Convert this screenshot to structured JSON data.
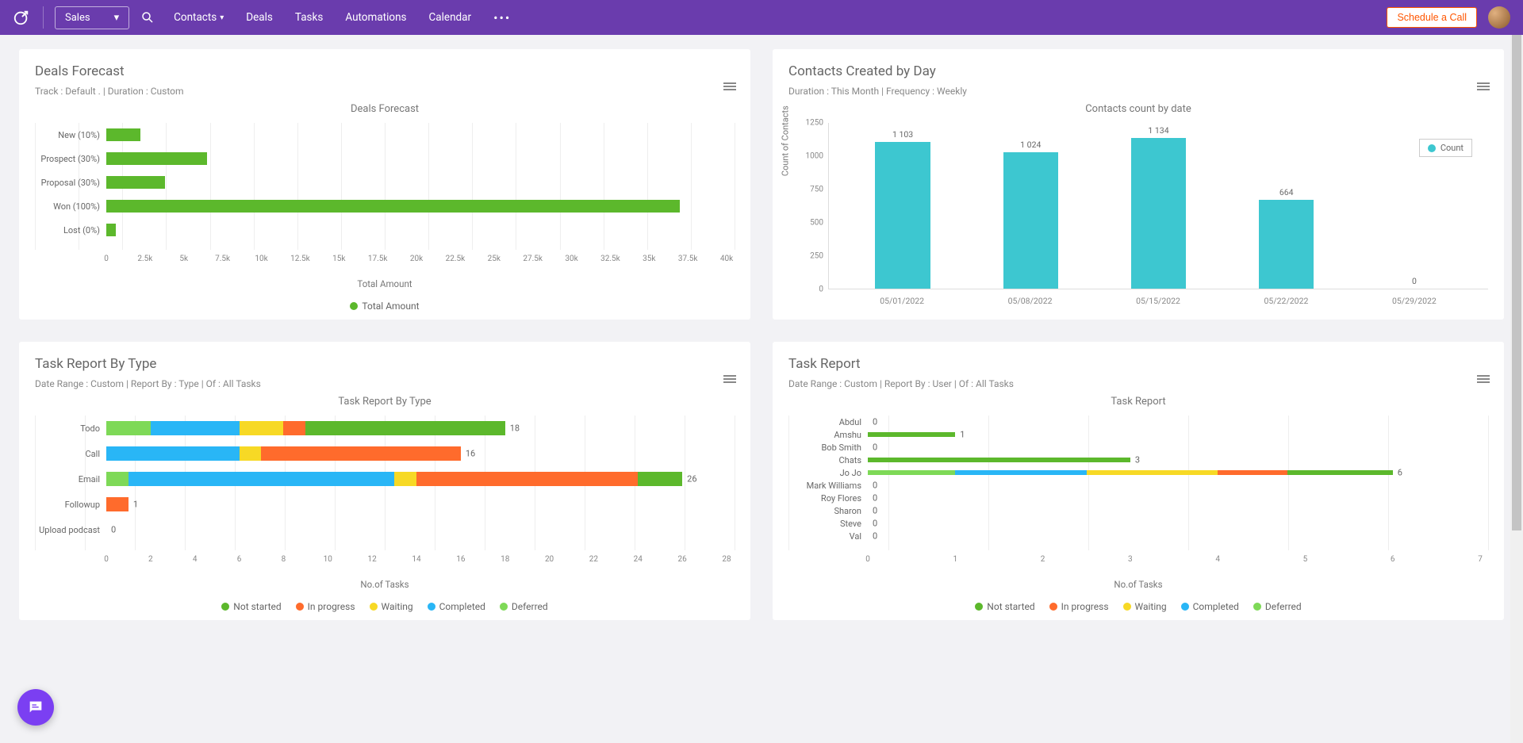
{
  "topbar": {
    "module": "Sales",
    "nav": [
      "Contacts",
      "Deals",
      "Tasks",
      "Automations",
      "Calendar"
    ],
    "schedule_label": "Schedule a Call"
  },
  "colors": {
    "topbar_bg": "#6a3cad",
    "page_bg": "#f2f2f5",
    "card_bg": "#ffffff",
    "grid": "#eeeeee",
    "text_muted": "#888888",
    "green": "#5cb82c",
    "teal": "#3dc7d0",
    "blue": "#29b6f6",
    "yellow": "#f7d925",
    "orange": "#ff6b2c",
    "lime": "#7ed957"
  },
  "deals_forecast": {
    "title": "Deals Forecast",
    "subtitle": "Track : Default .  | Duration : Custom",
    "chart_title": "Deals Forecast",
    "type": "horizontal_bar",
    "x_axis_title": "Total Amount",
    "x_ticks": [
      "0",
      "2.5k",
      "5k",
      "7.5k",
      "10k",
      "12.5k",
      "15k",
      "17.5k",
      "20k",
      "22.5k",
      "25k",
      "27.5k",
      "30k",
      "32.5k",
      "35k",
      "37.5k",
      "40k"
    ],
    "x_max": 40,
    "bars": [
      {
        "label": "New (10%)",
        "value": 2.2
      },
      {
        "label": "Prospect (30%)",
        "value": 6.5
      },
      {
        "label": "Proposal (30%)",
        "value": 3.8
      },
      {
        "label": "Won (100%)",
        "value": 37.0
      },
      {
        "label": "Lost (0%)",
        "value": 0.6
      }
    ],
    "bar_color": "#5cb82c",
    "legend": [
      {
        "label": "Total Amount",
        "color": "#5cb82c"
      }
    ]
  },
  "contacts_by_day": {
    "title": "Contacts Created by Day",
    "subtitle": "Duration : This Month | Frequency : Weekly",
    "chart_title": "Contacts count by date",
    "type": "vertical_bar",
    "y_axis_title": "Count of Contacts",
    "y_ticks": [
      0,
      250,
      500,
      750,
      1000,
      1250
    ],
    "y_max": 1250,
    "bars": [
      {
        "label": "05/01/2022",
        "value": 1103,
        "display": "1 103"
      },
      {
        "label": "05/08/2022",
        "value": 1024,
        "display": "1 024"
      },
      {
        "label": "05/15/2022",
        "value": 1134,
        "display": "1 134"
      },
      {
        "label": "05/22/2022",
        "value": 664,
        "display": "664"
      },
      {
        "label": "05/29/2022",
        "value": 0,
        "display": "0"
      }
    ],
    "bar_color": "#3dc7d0",
    "legend_label": "Count"
  },
  "task_by_type": {
    "title": "Task Report By Type",
    "subtitle": "Date Range : Custom | Report By : Type | Of : All Tasks",
    "chart_title": "Task Report By Type",
    "type": "stacked_horizontal_bar",
    "x_axis_title": "No.of Tasks",
    "x_ticks": [
      0,
      2,
      4,
      6,
      8,
      10,
      12,
      14,
      16,
      18,
      20,
      22,
      24,
      26,
      28
    ],
    "x_max": 28,
    "legend": [
      {
        "label": "Not started",
        "color": "#5cb82c"
      },
      {
        "label": "In progress",
        "color": "#ff6b2c"
      },
      {
        "label": "Waiting",
        "color": "#f7d925"
      },
      {
        "label": "Completed",
        "color": "#29b6f6"
      },
      {
        "label": "Deferred",
        "color": "#7ed957"
      }
    ],
    "rows": [
      {
        "label": "Todo",
        "total": 18,
        "segments": [
          {
            "c": "#7ed957",
            "v": 2
          },
          {
            "c": "#29b6f6",
            "v": 4
          },
          {
            "c": "#f7d925",
            "v": 2
          },
          {
            "c": "#ff6b2c",
            "v": 1
          },
          {
            "c": "#5cb82c",
            "v": 9
          }
        ]
      },
      {
        "label": "Call",
        "total": 16,
        "segments": [
          {
            "c": "#29b6f6",
            "v": 6
          },
          {
            "c": "#f7d925",
            "v": 1
          },
          {
            "c": "#ff6b2c",
            "v": 9
          }
        ]
      },
      {
        "label": "Email",
        "total": 26,
        "segments": [
          {
            "c": "#7ed957",
            "v": 1
          },
          {
            "c": "#29b6f6",
            "v": 12
          },
          {
            "c": "#f7d925",
            "v": 1
          },
          {
            "c": "#ff6b2c",
            "v": 10
          },
          {
            "c": "#5cb82c",
            "v": 2
          }
        ]
      },
      {
        "label": "Followup",
        "total": 1,
        "segments": [
          {
            "c": "#ff6b2c",
            "v": 1
          }
        ]
      },
      {
        "label": "Upload podcast",
        "total": 0,
        "segments": []
      }
    ]
  },
  "task_report": {
    "title": "Task Report",
    "subtitle": "Date Range : Custom | Report By : User | Of : All Tasks",
    "chart_title": "Task Report",
    "type": "stacked_horizontal_bar",
    "x_axis_title": "No.of Tasks",
    "x_ticks": [
      0,
      1,
      2,
      3,
      4,
      5,
      6,
      7
    ],
    "x_max": 7,
    "legend": [
      {
        "label": "Not started",
        "color": "#5cb82c"
      },
      {
        "label": "In progress",
        "color": "#ff6b2c"
      },
      {
        "label": "Waiting",
        "color": "#f7d925"
      },
      {
        "label": "Completed",
        "color": "#29b6f6"
      },
      {
        "label": "Deferred",
        "color": "#7ed957"
      }
    ],
    "rows": [
      {
        "label": "Abdul",
        "total": 0,
        "segments": []
      },
      {
        "label": "Amshu",
        "total": 1,
        "segments": [
          {
            "c": "#5cb82c",
            "v": 1
          }
        ]
      },
      {
        "label": "Bob Smith",
        "total": 0,
        "segments": []
      },
      {
        "label": "Chats",
        "total": 3,
        "segments": [
          {
            "c": "#5cb82c",
            "v": 3
          }
        ]
      },
      {
        "label": "Jo Jo",
        "total": 6,
        "segments": [
          {
            "c": "#7ed957",
            "v": 1
          },
          {
            "c": "#29b6f6",
            "v": 1.5
          },
          {
            "c": "#f7d925",
            "v": 1.5
          },
          {
            "c": "#ff6b2c",
            "v": 0.8
          },
          {
            "c": "#5cb82c",
            "v": 1.2
          }
        ]
      },
      {
        "label": "Mark Williams",
        "total": 0,
        "segments": []
      },
      {
        "label": "Roy Flores",
        "total": 0,
        "segments": []
      },
      {
        "label": "Sharon",
        "total": 0,
        "segments": []
      },
      {
        "label": "Steve",
        "total": 0,
        "segments": []
      },
      {
        "label": "Val",
        "total": 0,
        "segments": []
      }
    ]
  }
}
